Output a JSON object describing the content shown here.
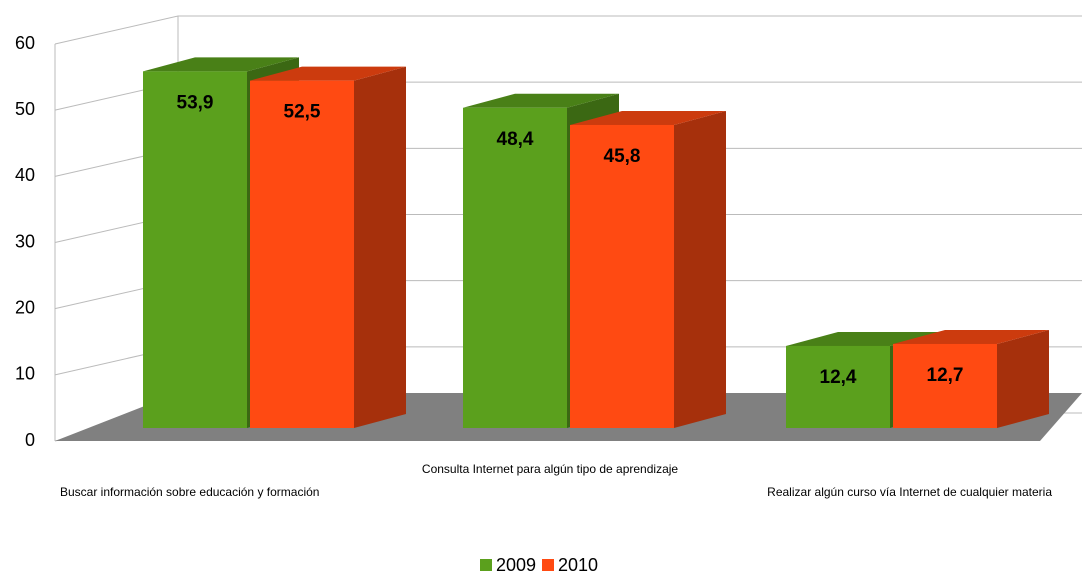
{
  "chart_data": {
    "type": "bar",
    "categories": [
      "Buscar información sobre educación y formación",
      "Consulta Internet para algún tipo de aprendizaje",
      "Realizar algún curso vía Internet de cualquier materia"
    ],
    "series": [
      {
        "name": "2009",
        "color": "#5ba01d",
        "values": [
          53.9,
          48.4,
          12.4
        ],
        "value_labels": [
          "53,9",
          "48,4",
          "12,4"
        ]
      },
      {
        "name": "2010",
        "color": "#ff4a12",
        "values": [
          52.5,
          45.8,
          12.7
        ],
        "value_labels": [
          "52,5",
          "45,8",
          "12,7"
        ]
      }
    ],
    "ylim": [
      0,
      60
    ],
    "yticks": [
      0,
      10,
      20,
      30,
      40,
      50,
      60
    ],
    "grid": true,
    "legend": "bottom"
  }
}
